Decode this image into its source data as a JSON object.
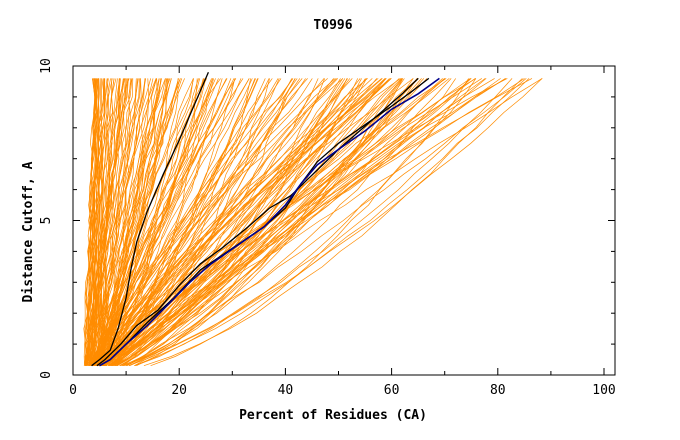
{
  "chart_data": {
    "type": "line",
    "title": "T0996",
    "xlabel": "Percent of Residues (CA)",
    "ylabel": "Distance Cutoff, A",
    "xlim": [
      0,
      100
    ],
    "ylim": [
      0,
      10
    ],
    "x_ticks": [
      "0",
      "20",
      "40",
      "60",
      "80",
      "100"
    ],
    "y_ticks": [
      "0",
      "5",
      "10"
    ],
    "grid": false,
    "colors": {
      "fan": "#ff8c00",
      "highlight": "#000000",
      "best": "#00008b"
    },
    "fan_curve_count": 230,
    "fan_x_range_at_top": [
      4,
      90
    ],
    "highlighted_series": [
      {
        "values": [
          [
            3.5,
            0.3
          ],
          [
            5,
            0.5
          ],
          [
            7,
            0.8
          ],
          [
            8.5,
            1.5
          ],
          [
            10,
            2.5
          ],
          [
            11,
            3.5
          ],
          [
            12,
            4.3
          ],
          [
            14,
            5.3
          ],
          [
            17,
            6.5
          ],
          [
            20,
            7.6
          ],
          [
            22,
            8.4
          ],
          [
            24,
            9.2
          ],
          [
            25.5,
            9.8
          ]
        ]
      },
      {
        "values": [
          [
            4.5,
            0.3
          ],
          [
            6,
            0.5
          ],
          [
            9,
            1
          ],
          [
            12,
            1.6
          ],
          [
            16,
            2.1
          ],
          [
            20,
            2.9
          ],
          [
            24,
            3.6
          ],
          [
            28,
            4.1
          ],
          [
            33,
            4.8
          ],
          [
            37,
            5.4
          ],
          [
            41,
            5.8
          ],
          [
            44,
            6.3
          ],
          [
            47,
            6.8
          ],
          [
            50,
            7.3
          ],
          [
            54,
            7.9
          ],
          [
            58,
            8.5
          ],
          [
            62,
            9.1
          ],
          [
            65,
            9.6
          ]
        ]
      },
      {
        "values": [
          [
            5,
            0.3
          ],
          [
            7,
            0.5
          ],
          [
            10,
            1
          ],
          [
            14,
            1.7
          ],
          [
            19,
            2.5
          ],
          [
            24,
            3.4
          ],
          [
            30,
            4.1
          ],
          [
            36,
            4.8
          ],
          [
            40,
            5.4
          ],
          [
            43,
            6.2
          ],
          [
            46,
            6.9
          ],
          [
            50,
            7.5
          ],
          [
            55,
            8.1
          ],
          [
            60,
            8.7
          ],
          [
            64,
            9.2
          ],
          [
            67,
            9.6
          ]
        ]
      }
    ],
    "best_series": {
      "values": [
        [
          5,
          0.3
        ],
        [
          7,
          0.5
        ],
        [
          10,
          1
        ],
        [
          14,
          1.6
        ],
        [
          18,
          2.3
        ],
        [
          22,
          3
        ],
        [
          26,
          3.6
        ],
        [
          31,
          4.2
        ],
        [
          36,
          4.8
        ],
        [
          40,
          5.5
        ],
        [
          43,
          6.2
        ],
        [
          46,
          6.8
        ],
        [
          50,
          7.3
        ],
        [
          55,
          7.9
        ],
        [
          60,
          8.6
        ],
        [
          65,
          9.1
        ],
        [
          69,
          9.6
        ]
      ]
    }
  }
}
